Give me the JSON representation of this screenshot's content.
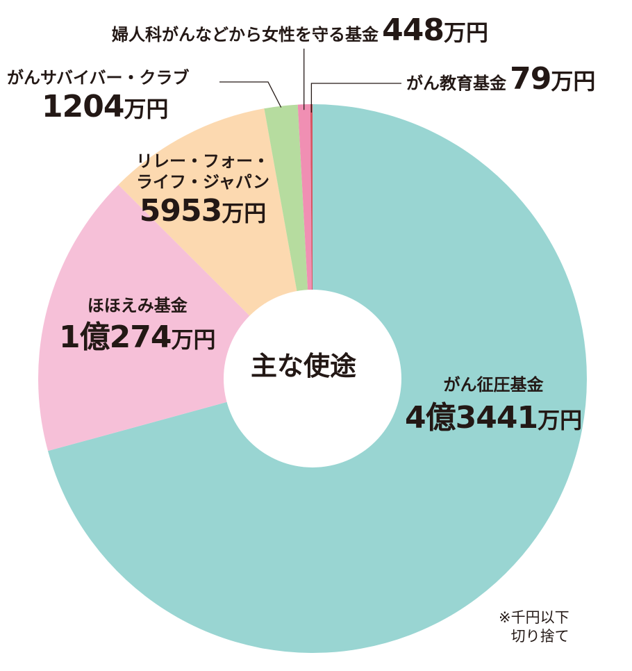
{
  "chart_data": {
    "type": "pie",
    "variant": "donut",
    "title": "主な使途",
    "unit": "万円",
    "slices": [
      {
        "label": "がん征圧基金",
        "value": 43441,
        "amount_number": "4億3441",
        "color": "#99d5d2"
      },
      {
        "label": "ほほえみ基金",
        "value": 10274,
        "amount_number": "1億274",
        "color": "#f6c0d8"
      },
      {
        "label": "リレー・フォー・ライフ・ジャパン",
        "label_lines": [
          "リレー・フォー・",
          "ライフ・ジャパン"
        ],
        "value": 5953,
        "amount_number": "5953",
        "color": "#fcd9b0"
      },
      {
        "label": "がんサバイバー・クラブ",
        "value": 1204,
        "amount_number": "1204",
        "color": "#b6dc9f"
      },
      {
        "label": "婦人科がんなどから女性を守る基金",
        "value": 448,
        "amount_number": "448",
        "color": "#f08fb3"
      },
      {
        "label": "がん教育基金",
        "value": 79,
        "amount_number": "79",
        "color": "#d85563"
      }
    ],
    "note": [
      "※千円以下",
      "切り捨て"
    ]
  }
}
